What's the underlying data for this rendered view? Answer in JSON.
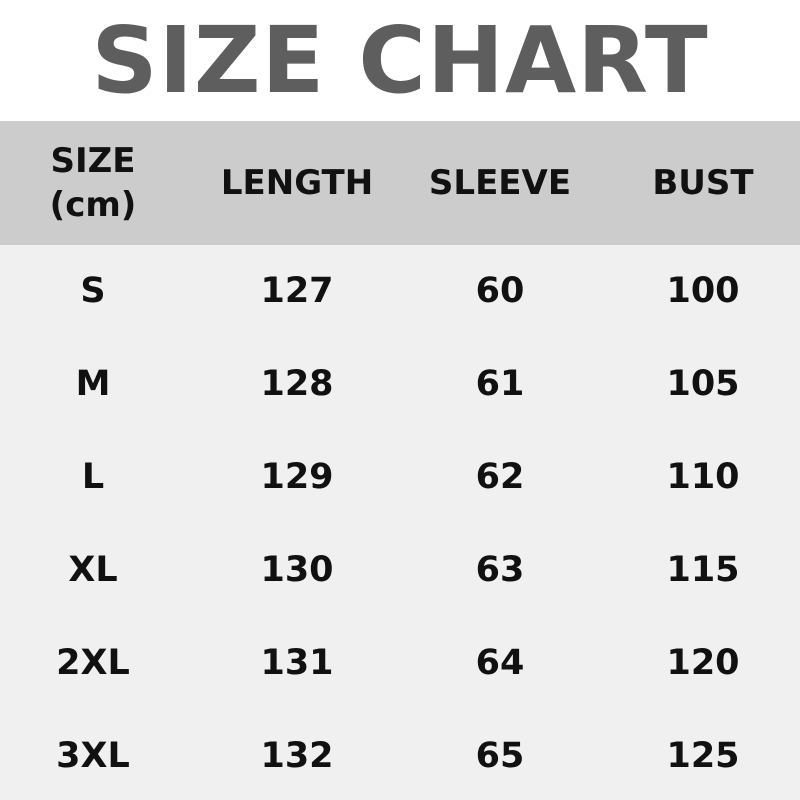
{
  "title": "SIZE CHART",
  "colors": {
    "title": "#5e5e5e",
    "header_bg": "#cccccc",
    "body_bg": "#f0f0f0"
  },
  "headers": [
    "SIZE",
    "(cm)",
    "LENGTH",
    "SLEEVE",
    "BUST"
  ],
  "chart_data": {
    "type": "table",
    "title": "SIZE CHART",
    "columns": [
      "SIZE (cm)",
      "LENGTH",
      "SLEEVE",
      "BUST"
    ],
    "rows": [
      [
        "S",
        "127",
        "60",
        "100"
      ],
      [
        "M",
        "128",
        "61",
        "105"
      ],
      [
        "L",
        "129",
        "62",
        "110"
      ],
      [
        "XL",
        "130",
        "63",
        "115"
      ],
      [
        "2XL",
        "131",
        "64",
        "120"
      ],
      [
        "3XL",
        "132",
        "65",
        "125"
      ]
    ]
  }
}
